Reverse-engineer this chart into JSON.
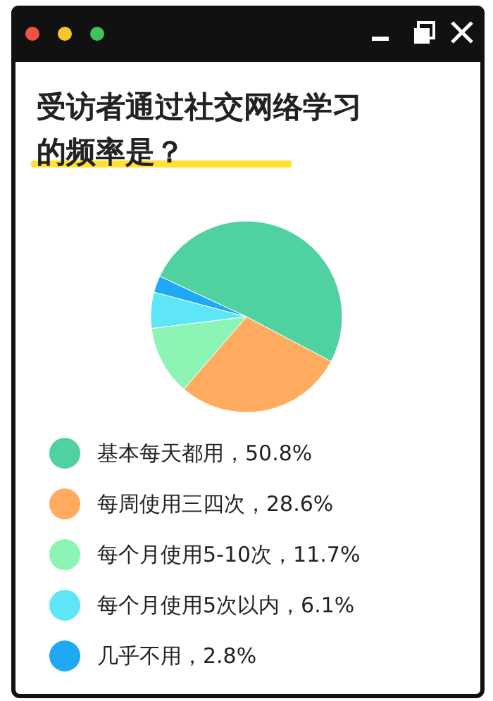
{
  "chart_data": {
    "type": "pie",
    "title": "受访者通过社交网络学习的频率是？",
    "categories": [
      "基本每天都用，50.8%",
      "每周使用三四次，28.6%",
      "每个月使用5-10次，11.7%",
      "每个月使用5次以内，6.1%",
      "几乎不用，2.8%"
    ],
    "values": [
      50.8,
      28.6,
      11.7,
      6.1,
      2.8
    ],
    "colors": [
      "#4fd1a0",
      "#ffab60",
      "#8cf5b5",
      "#5ee6f7",
      "#1fa9f5"
    ],
    "legend": "bottom"
  }
}
